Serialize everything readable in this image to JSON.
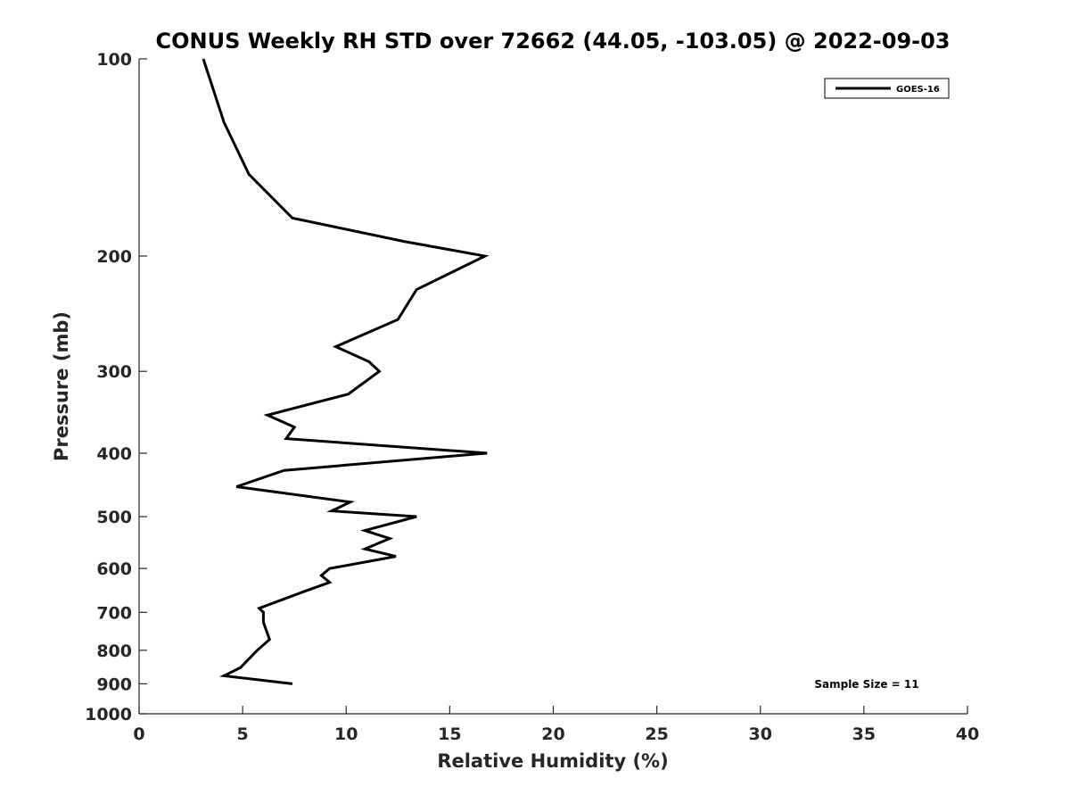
{
  "chart_data": {
    "type": "line",
    "title": "CONUS Weekly RH STD over 72662 (44.05, -103.05) @ 2022-09-03",
    "xlabel": "Relative Humidity (%)",
    "ylabel": "Pressure (mb)",
    "xlim": [
      0,
      40
    ],
    "ylim": [
      100,
      1000
    ],
    "y_scale": "log",
    "y_reversed": true,
    "x_ticks": [
      0,
      5,
      10,
      15,
      20,
      25,
      30,
      35,
      40
    ],
    "y_ticks": [
      100,
      200,
      300,
      400,
      500,
      600,
      700,
      800,
      900,
      1000
    ],
    "grid": false,
    "legend_position": "top-right",
    "annotation": "Sample Size = 11",
    "series": [
      {
        "name": "GOES-16",
        "color": "#000000",
        "points": [
          {
            "x": 3.1,
            "y": 100
          },
          {
            "x": 4.1,
            "y": 125
          },
          {
            "x": 5.3,
            "y": 150
          },
          {
            "x": 7.4,
            "y": 175
          },
          {
            "x": 12.8,
            "y": 190
          },
          {
            "x": 16.7,
            "y": 200
          },
          {
            "x": 13.4,
            "y": 225
          },
          {
            "x": 12.5,
            "y": 250
          },
          {
            "x": 9.5,
            "y": 275
          },
          {
            "x": 11.1,
            "y": 290
          },
          {
            "x": 11.6,
            "y": 300
          },
          {
            "x": 10.1,
            "y": 325
          },
          {
            "x": 6.2,
            "y": 350
          },
          {
            "x": 7.5,
            "y": 365
          },
          {
            "x": 7.1,
            "y": 380
          },
          {
            "x": 16.8,
            "y": 400
          },
          {
            "x": 7.0,
            "y": 425
          },
          {
            "x": 4.7,
            "y": 450
          },
          {
            "x": 10.2,
            "y": 475
          },
          {
            "x": 9.3,
            "y": 490
          },
          {
            "x": 13.4,
            "y": 500
          },
          {
            "x": 10.9,
            "y": 525
          },
          {
            "x": 12.1,
            "y": 540
          },
          {
            "x": 10.9,
            "y": 560
          },
          {
            "x": 12.4,
            "y": 575
          },
          {
            "x": 9.2,
            "y": 600
          },
          {
            "x": 8.8,
            "y": 615
          },
          {
            "x": 9.2,
            "y": 630
          },
          {
            "x": 8.0,
            "y": 650
          },
          {
            "x": 5.8,
            "y": 690
          },
          {
            "x": 6.0,
            "y": 700
          },
          {
            "x": 6.0,
            "y": 725
          },
          {
            "x": 6.3,
            "y": 770
          },
          {
            "x": 5.7,
            "y": 800
          },
          {
            "x": 4.9,
            "y": 850
          },
          {
            "x": 4.1,
            "y": 875
          },
          {
            "x": 7.4,
            "y": 900
          }
        ]
      }
    ]
  }
}
